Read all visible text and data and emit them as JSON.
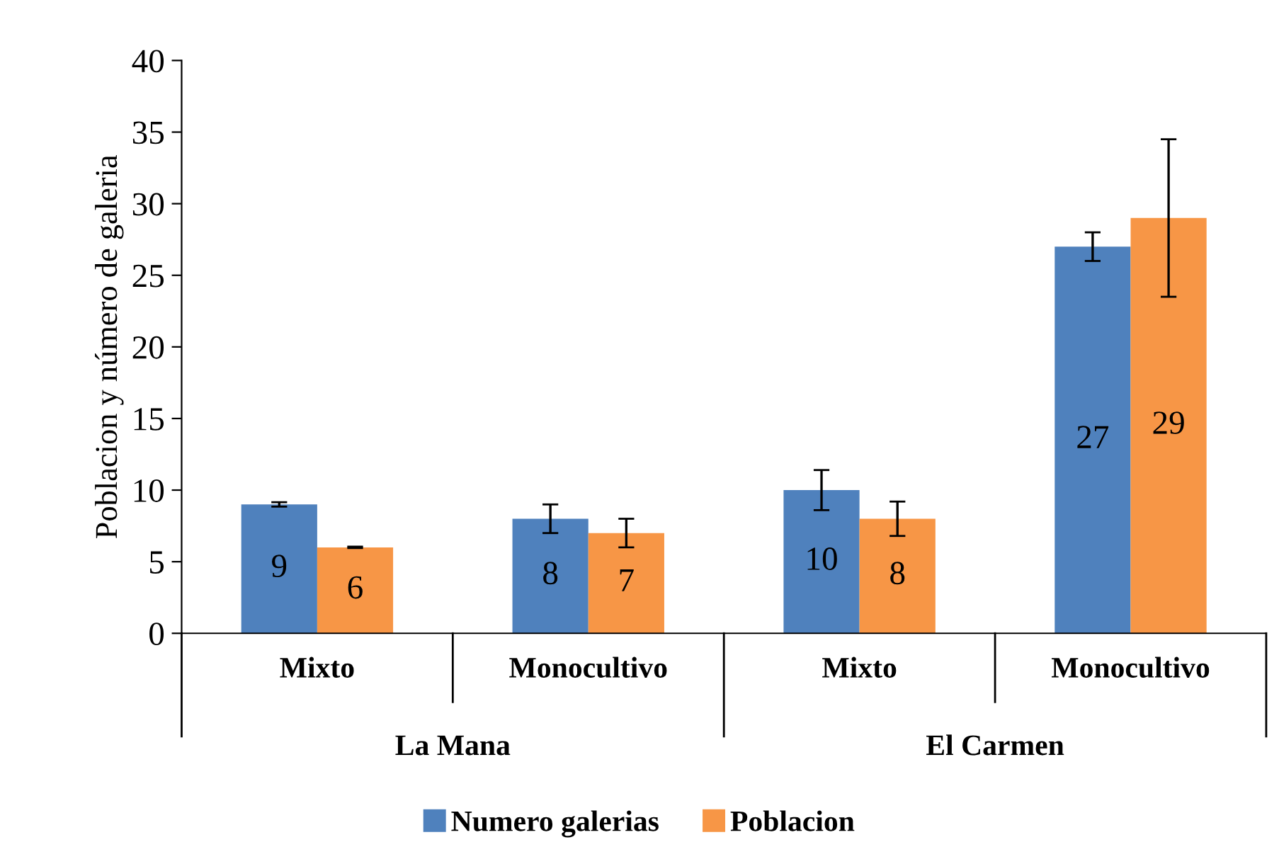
{
  "chart_data": {
    "type": "bar",
    "ylabel": "Poblacion y número de galeria",
    "categories": [
      "Mixto",
      "Monocultivo",
      "Mixto",
      "Monocultivo"
    ],
    "annotations": [
      "La Mana",
      "El Carmen"
    ],
    "series": [
      {
        "name": "Numero galerias",
        "color": "#4f81bd",
        "values": [
          9,
          8,
          10,
          27
        ],
        "errors": [
          0.15,
          1,
          1.4,
          1
        ]
      },
      {
        "name": "Poblacion",
        "color": "#f79646",
        "values": [
          6,
          7,
          8,
          29
        ],
        "errors": [
          0.05,
          1,
          1.2,
          5.5
        ]
      }
    ],
    "ylim": [
      0,
      40
    ],
    "yticks": [
      0,
      5,
      10,
      15,
      20,
      25,
      30,
      35,
      40
    ],
    "data_labels": true,
    "legend": "bottom",
    "grid": false
  }
}
